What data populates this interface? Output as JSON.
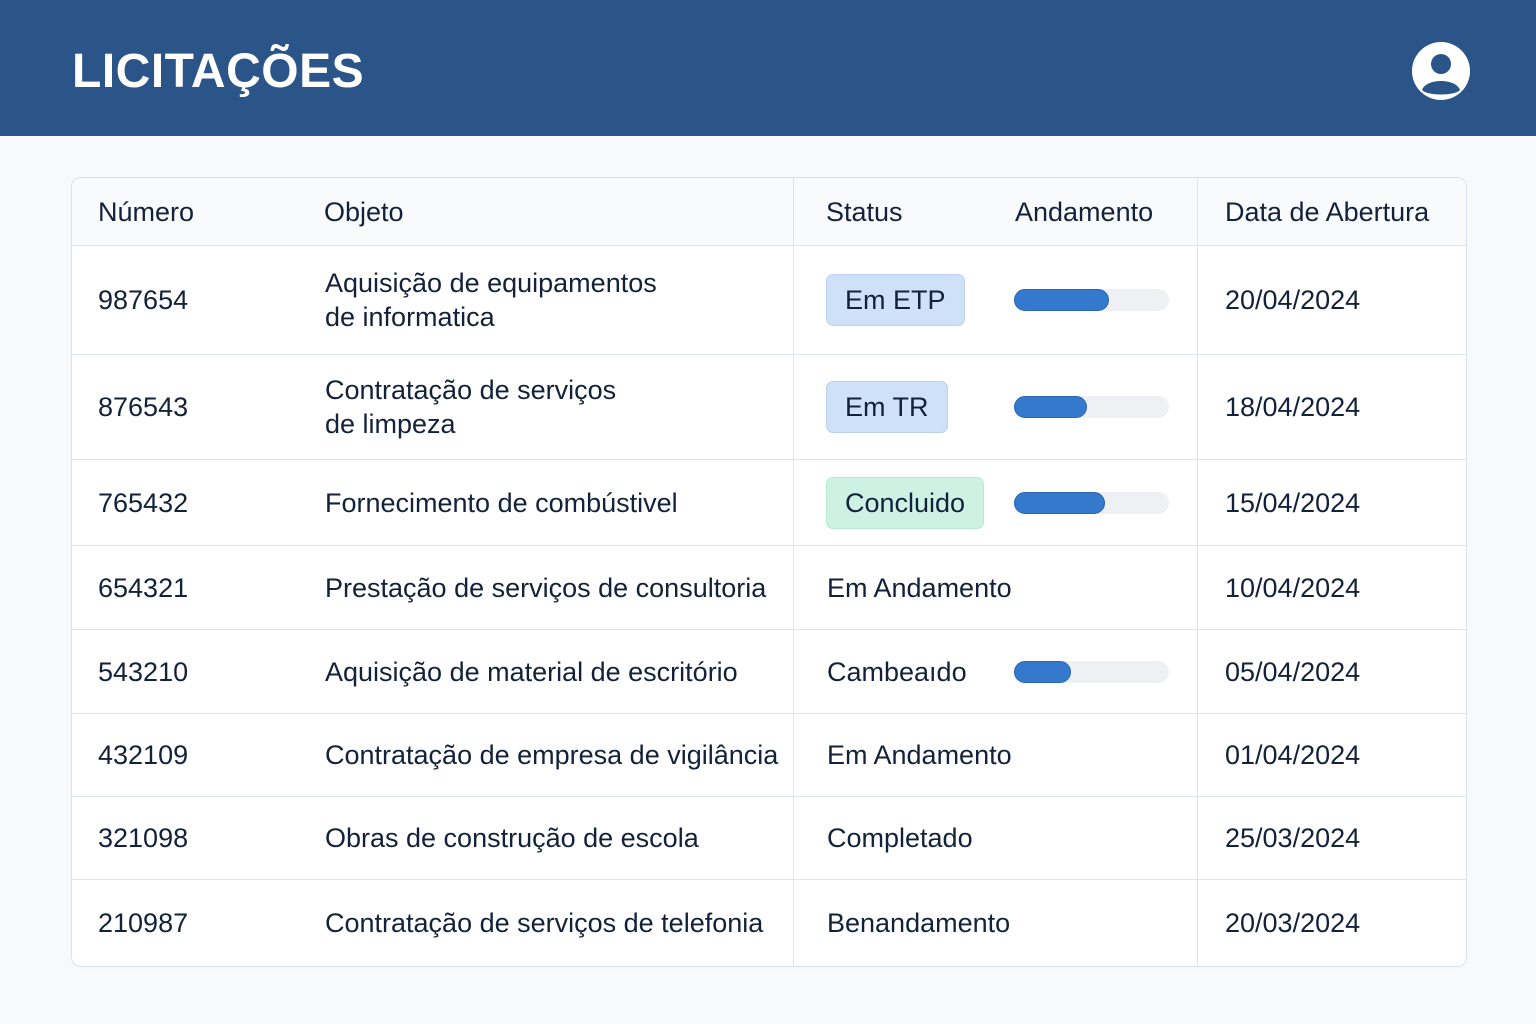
{
  "header": {
    "title": "LICITAÇÕES",
    "avatar_icon": "user-circle-icon"
  },
  "colors": {
    "header_bg": "#2b5589",
    "progress_fill": "#3579cc",
    "badge_blue": "#cfe1f6",
    "badge_green": "#cdf1e2"
  },
  "table": {
    "columns": [
      "Número",
      "Objeto",
      "Status",
      "Andamento",
      "Data de Abertura"
    ],
    "rows": [
      {
        "numero": "987654",
        "objeto": [
          "Aquisição de equipamentos",
          "de informatica"
        ],
        "status": "Em ETP",
        "badge": "blue",
        "progress": 61,
        "data": "20/04/2024"
      },
      {
        "numero": "876543",
        "objeto": [
          "Contratação de serviços",
          "de limpeza"
        ],
        "status": "Em TR",
        "badge": "blue",
        "progress": 47,
        "data": "18/04/2024"
      },
      {
        "numero": "765432",
        "objeto": [
          "Fornecimento de combústivel"
        ],
        "status": "Concluido",
        "badge": "green",
        "progress": 59,
        "data": "15/04/2024"
      },
      {
        "numero": "654321",
        "objeto": [
          "Prestação de serviços de consultoria"
        ],
        "status": "Em Andamento",
        "badge": null,
        "progress": null,
        "data": "10/04/2024"
      },
      {
        "numero": "543210",
        "objeto": [
          "Aquisição de material de escritório"
        ],
        "status": "Cambeaıdo",
        "badge": null,
        "progress": 37,
        "data": "05/04/2024"
      },
      {
        "numero": "432109",
        "objeto": [
          "Contratação de empresa de vigilância"
        ],
        "status": "Em Andamento",
        "badge": null,
        "progress": null,
        "data": "01/04/2024"
      },
      {
        "numero": "321098",
        "objeto": [
          "Obras de construção de escola"
        ],
        "status": "Completado",
        "badge": null,
        "progress": null,
        "data": "25/03/2024"
      },
      {
        "numero": "210987",
        "objeto": [
          "Contratação de serviços de telefonia"
        ],
        "status": "Benandamento",
        "badge": null,
        "progress": null,
        "data": "20/03/2024"
      }
    ]
  }
}
